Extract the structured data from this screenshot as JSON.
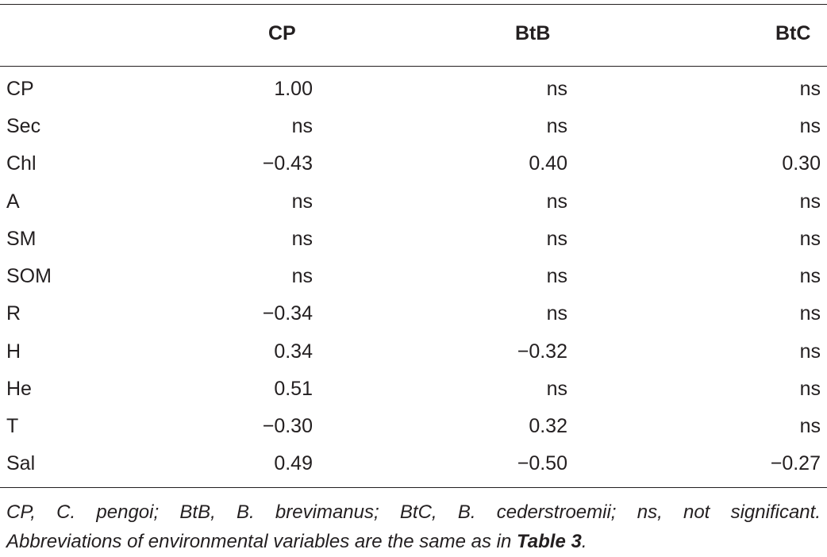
{
  "table": {
    "columns": [
      "CP",
      "BtB",
      "BtC"
    ],
    "rows": [
      {
        "var": "CP",
        "cp": "1.00",
        "btb": "ns",
        "btc": "ns"
      },
      {
        "var": "Sec",
        "cp": "ns",
        "btb": "ns",
        "btc": "ns"
      },
      {
        "var": "Chl",
        "cp": "−0.43",
        "btb": "0.40",
        "btc": "0.30"
      },
      {
        "var": "A",
        "cp": "ns",
        "btb": "ns",
        "btc": "ns"
      },
      {
        "var": "SM",
        "cp": "ns",
        "btb": "ns",
        "btc": "ns"
      },
      {
        "var": "SOM",
        "cp": "ns",
        "btb": "ns",
        "btc": "ns"
      },
      {
        "var": "R",
        "cp": "−0.34",
        "btb": "ns",
        "btc": "ns"
      },
      {
        "var": "H",
        "cp": "0.34",
        "btb": "−0.32",
        "btc": "ns"
      },
      {
        "var": "He",
        "cp": "0.51",
        "btb": "ns",
        "btc": "ns"
      },
      {
        "var": "T",
        "cp": "−0.30",
        "btb": "0.32",
        "btc": "ns"
      },
      {
        "var": "Sal",
        "cp": "0.49",
        "btb": "−0.50",
        "btc": "−0.27"
      }
    ]
  },
  "footnote": {
    "line1": "CP, C. pengoi; BtB, B. brevimanus; BtC, B. cederstroemii; ns, not significant.",
    "line2_prefix": "Abbreviations of environmental variables are the same as in ",
    "line2_ref": "Table 3",
    "line2_suffix": "."
  }
}
